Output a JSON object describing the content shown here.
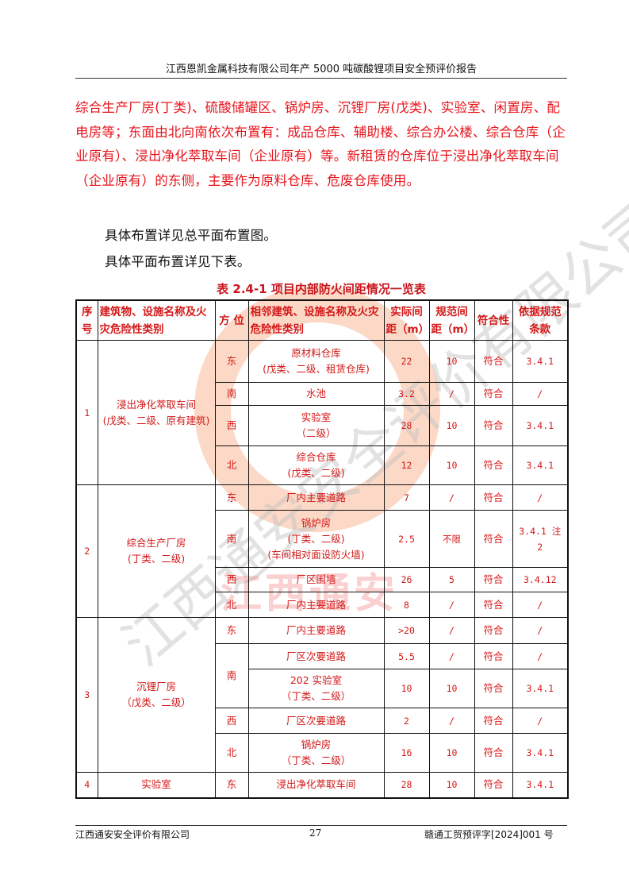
{
  "header": {
    "title": "江西恩凯金属科技有限公司年产 5000 吨碳酸锂项目安全预评价报告"
  },
  "body": {
    "paragraph1": "综合生产厂房(丁类)、硫酸储罐区、锅炉房、沉锂厂房(戊类)、实验室、闲置房、配电房等；东面由北向南依次布置有：成品仓库、辅助楼、综合办公楼、综合仓库（企业原有）、浸出净化萃取车间（企业原有）等。新租赁的仓库位于浸出净化萃取车间（企业原有）的东侧，主要作为原料仓库、危废仓库使用。",
    "paragraph2": "具体布置详见总平面布置图。",
    "paragraph3": "具体平面布置详见下表。"
  },
  "table": {
    "caption": "表 2.4-1 项目内部防火间距情况一览表",
    "headers": [
      "序号",
      "建筑物、设施名称及火灾危险性类别",
      "方 位",
      "相邻建筑、设施名称及火灾危险性类别",
      "实际间距（m）",
      "规范间距（m）",
      "符合性",
      "依据规范条款"
    ],
    "groups": [
      {
        "no": "1",
        "name": "浸出净化萃取车间",
        "class": "(戊类、二级、原有建筑)",
        "rows": [
          {
            "dir": "东",
            "adj": "原材料仓库",
            "adj2": "(戊类、二级、租赁仓库)",
            "actual": "22",
            "spec": "10",
            "ok": "符合",
            "clause": "3.4.1"
          },
          {
            "dir": "南",
            "adj": "水池",
            "actual": "3.2",
            "spec": "/",
            "ok": "符合",
            "clause": "/"
          },
          {
            "dir": "西",
            "adj": "实验室",
            "adj2": "（二级）",
            "actual": "28",
            "spec": "10",
            "ok": "符合",
            "clause": "3.4.1"
          },
          {
            "dir": "北",
            "adj": "综合仓库",
            "adj2": "(戊类、二级)",
            "actual": "12",
            "spec": "10",
            "ok": "符合",
            "clause": "3.4.1"
          }
        ]
      },
      {
        "no": "2",
        "name": "综合生产厂房",
        "class": "(丁类、二级)",
        "rows": [
          {
            "dir": "东",
            "adj": "厂内主要道路",
            "actual": "7",
            "spec": "/",
            "ok": "符合",
            "clause": "/"
          },
          {
            "dir": "南",
            "adj": "锅炉房",
            "adj2": "(丁类、二级)",
            "adj3": "(车间相对面设防火墙)",
            "actual": "2.5",
            "spec": "不限",
            "ok": "符合",
            "clause": "3.4.1 注 2"
          },
          {
            "dir": "西",
            "adj": "厂区围墙",
            "actual": "26",
            "spec": "5",
            "ok": "符合",
            "clause": "3.4.12"
          },
          {
            "dir": "北",
            "adj": "厂内主要道路",
            "actual": "8",
            "spec": "/",
            "ok": "符合",
            "clause": "/"
          }
        ]
      },
      {
        "no": "3",
        "name": "沉锂厂房",
        "class": "（戊类、二级）",
        "rows": [
          {
            "dir": "东",
            "adj": "厂内主要道路",
            "actual": ">20",
            "spec": "/",
            "ok": "符合",
            "clause": "/"
          },
          {
            "dir": "南",
            "adj": "厂区次要道路",
            "actual": "5.5",
            "spec": "/",
            "ok": "符合",
            "clause": "/"
          },
          {
            "dir": "",
            "adj": "202 实验室",
            "adj2": "（丁类、二级）",
            "actual": "10",
            "spec": "10",
            "ok": "符合",
            "clause": "3.4.1"
          },
          {
            "dir": "西",
            "adj": "厂区次要道路",
            "actual": "2",
            "spec": "/",
            "ok": "符合",
            "clause": "/"
          },
          {
            "dir": "北",
            "adj": "锅炉房",
            "adj2": "（丁类、二级）",
            "actual": "16",
            "spec": "10",
            "ok": "符合",
            "clause": "3.4.1"
          }
        ]
      },
      {
        "no": "4",
        "name": "实验室",
        "rows": [
          {
            "dir": "东",
            "adj": "浸出净化萃取车间",
            "actual": "28",
            "spec": "10",
            "ok": "符合",
            "clause": "3.4.1"
          }
        ]
      }
    ]
  },
  "footer": {
    "company": "江西通安安全评价有限公司",
    "page": "27",
    "doc_no": "赣通工贸预评字[2024]001 号"
  },
  "watermark": {
    "text": "江西通安安全评价有限公司",
    "text2": "江西通安",
    "colors": {
      "ring": "#f5a27a",
      "gray": "#c8c8c8",
      "red": "#f08080"
    }
  }
}
